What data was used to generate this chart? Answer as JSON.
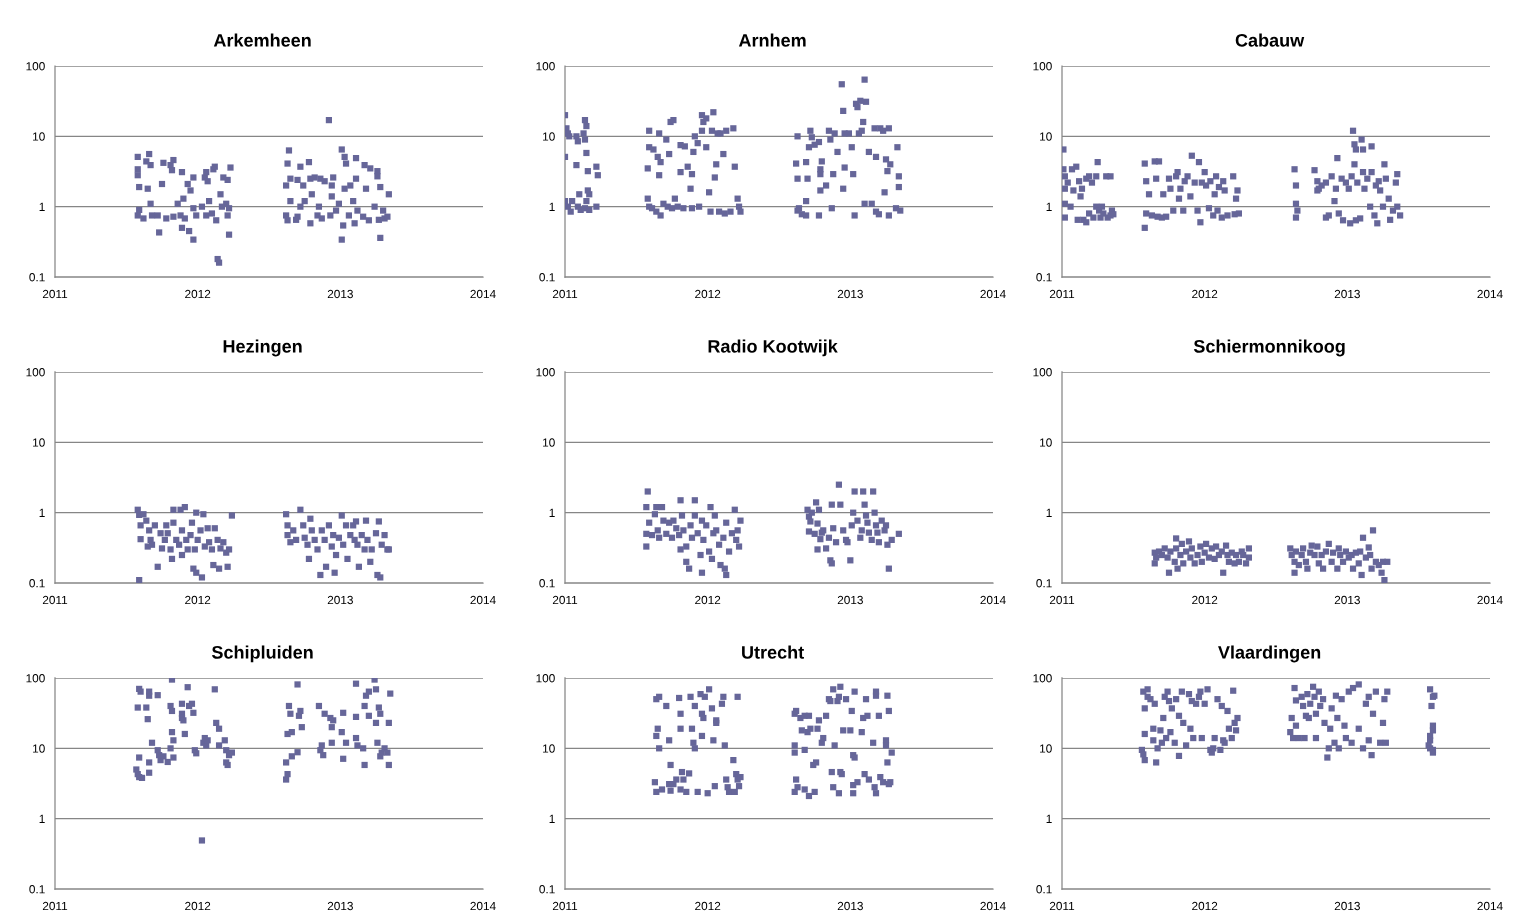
{
  "chart_data": [
    {
      "type": "scatter",
      "title": "Arkemheen",
      "color": "#666699",
      "marker": "square",
      "log": true,
      "grid": "y",
      "xlim": [
        2011,
        2014
      ],
      "xticks": [
        2011,
        2012,
        2013,
        2014
      ],
      "ylim": [
        0.1,
        100
      ],
      "yticks": [
        0.1,
        1,
        10,
        100
      ],
      "x": [
        2011.58,
        2011.58,
        2011.58,
        2011.59,
        2011.58,
        2011.59,
        2011.62,
        2011.64,
        2011.66,
        2011.67,
        2011.65,
        2011.67,
        2011.68,
        2011.72,
        2011.73,
        2011.75,
        2011.76,
        2011.78,
        2011.81,
        2011.82,
        2011.83,
        2011.83,
        2011.86,
        2011.88,
        2011.89,
        2011.89,
        2011.9,
        2011.91,
        2011.93,
        2011.94,
        2011.95,
        2011.97,
        2011.97,
        2011.97,
        2011.99,
        2012.03,
        2012.05,
        2012.06,
        2012.06,
        2012.07,
        2012.08,
        2012.1,
        2012.11,
        2012.12,
        2012.13,
        2012.14,
        2012.15,
        2012.16,
        2012.17,
        2012.18,
        2012.2,
        2012.21,
        2012.21,
        2012.22,
        2012.22,
        2012.23,
        2012.62,
        2012.63,
        2012.64,
        2012.62,
        2012.63,
        2012.65,
        2012.65,
        2012.69,
        2012.7,
        2012.7,
        2012.72,
        2012.72,
        2012.74,
        2012.75,
        2012.78,
        2012.79,
        2012.79,
        2012.8,
        2012.82,
        2012.84,
        2012.85,
        2012.86,
        2012.87,
        2012.89,
        2012.92,
        2012.93,
        2012.94,
        2012.94,
        2012.95,
        2012.97,
        2012.99,
        2013.01,
        2013.01,
        2013.02,
        2013.03,
        2013.03,
        2013.04,
        2013.06,
        2013.07,
        2013.09,
        2013.1,
        2013.11,
        2013.11,
        2013.12,
        2013.16,
        2013.17,
        2013.18,
        2013.2,
        2013.21,
        2013.24,
        2013.26,
        2013.26,
        2013.27,
        2013.28,
        2013.28,
        2013.3,
        2013.31,
        2013.33,
        2013.34
      ],
      "values": [
        5.1,
        3.4,
        2.8,
        1.9,
        0.75,
        0.9,
        0.68,
        4.4,
        5.6,
        3.9,
        1.8,
        1.1,
        0.75,
        0.75,
        0.43,
        2.1,
        4.2,
        0.68,
        3.9,
        3.3,
        4.6,
        0.72,
        1.1,
        0.75,
        0.5,
        3.1,
        1.3,
        0.68,
        2.1,
        0.45,
        1.7,
        2.6,
        0.95,
        0.34,
        0.75,
        1,
        2.6,
        3.1,
        0.75,
        2.3,
        1.2,
        0.8,
        3.4,
        3.7,
        0.64,
        0.18,
        0.16,
        1.5,
        1,
        2.6,
        1.1,
        0.75,
        2.4,
        0.4,
        0.95,
        3.6,
        2,
        4.1,
        6.3,
        0.75,
        0.64,
        2.5,
        1.2,
        0.65,
        0.72,
        2.4,
        3.7,
        1,
        2,
        1.2,
        4.3,
        2.5,
        0.58,
        1.5,
        2.6,
        0.75,
        1,
        2.5,
        0.68,
        2.3,
        17,
        0.75,
        2,
        1.4,
        2.6,
        0.88,
        1.1,
        6.5,
        0.34,
        0.54,
        5.1,
        1.8,
        4.1,
        0.75,
        2,
        1.2,
        0.58,
        4.9,
        2.5,
        0.88,
        0.72,
        3.9,
        1.8,
        0.64,
        3.5,
        1,
        3.2,
        2.7,
        0.65,
        0.36,
        1.9,
        0.88,
        0.68,
        0.72,
        1.5
      ]
    },
    {
      "type": "scatter",
      "title": "Arnhem",
      "color": "#666699",
      "marker": "square",
      "log": true,
      "grid": "y",
      "xlim": [
        2011,
        2014
      ],
      "xticks": [
        2011,
        2012,
        2013,
        2014
      ],
      "ylim": [
        0.1,
        100
      ],
      "yticks": [
        0.1,
        1,
        10,
        100
      ],
      "x": [
        2011.0,
        2011.01,
        2011.02,
        2011.03,
        2011.0,
        2011.0,
        2011.02,
        2011.04,
        2011.05,
        2011.08,
        2011.09,
        2011.08,
        2011.1,
        2011.09,
        2011.11,
        2011.14,
        2011.15,
        2011.13,
        2011.14,
        2011.15,
        2011.16,
        2011.16,
        2011.17,
        2011.15,
        2011.14,
        2011.17,
        2011.22,
        2011.23,
        2011.22,
        2011.58,
        2011.59,
        2011.59,
        2011.58,
        2011.59,
        2011.61,
        2011.62,
        2011.64,
        2011.65,
        2011.66,
        2011.66,
        2011.67,
        2011.67,
        2011.69,
        2011.71,
        2011.72,
        2011.73,
        2011.74,
        2011.75,
        2011.76,
        2011.77,
        2011.79,
        2011.81,
        2011.81,
        2011.83,
        2011.84,
        2011.86,
        2011.88,
        2011.89,
        2011.89,
        2011.9,
        2011.91,
        2011.93,
        2011.94,
        2011.96,
        2011.96,
        2011.97,
        2011.99,
        2011.99,
        2012.01,
        2012.02,
        2012.03,
        2012.04,
        2012.05,
        2012.06,
        2012.07,
        2012.08,
        2012.09,
        2012.11,
        2012.12,
        2012.13,
        2012.16,
        2012.18,
        2012.19,
        2012.21,
        2012.22,
        2012.23,
        2012.63,
        2012.63,
        2012.62,
        2012.63,
        2012.64,
        2012.66,
        2012.69,
        2012.69,
        2012.7,
        2012.69,
        2012.71,
        2012.72,
        2012.73,
        2012.75,
        2012.78,
        2012.78,
        2012.79,
        2012.79,
        2012.79,
        2012.8,
        2012.83,
        2012.85,
        2012.86,
        2012.87,
        2012.88,
        2012.89,
        2012.91,
        2012.94,
        2012.95,
        2012.95,
        2012.96,
        2012.96,
        2012.99,
        2013.01,
        2013.02,
        2013.03,
        2013.04,
        2013.05,
        2013.06,
        2013.07,
        2013.08,
        2013.09,
        2013.1,
        2013.1,
        2013.11,
        2013.13,
        2013.15,
        2013.17,
        2013.18,
        2013.18,
        2013.2,
        2013.21,
        2013.23,
        2013.24,
        2013.25,
        2013.26,
        2013.27,
        2013.27,
        2013.28,
        2013.32,
        2013.33,
        2013.34,
        2013.34,
        2013.35
      ],
      "values": [
        20,
        13,
        11,
        10,
        5.1,
        1.2,
        1,
        0.85,
        1.2,
        10,
        8.5,
        3.9,
        1.5,
        1,
        0.9,
        17,
        14,
        11,
        9,
        5.8,
        3.2,
        1.7,
        1.5,
        1.2,
        0.95,
        0.9,
        3.7,
        2.8,
        1,
        3.5,
        7,
        12,
        1.3,
        1,
        0.95,
        6.5,
        0.85,
        5.1,
        11,
        2.8,
        0.75,
        4.3,
        1.1,
        9,
        1,
        5.6,
        16,
        0.95,
        17,
        1.3,
        1,
        7.5,
        3.1,
        0.95,
        7.2,
        3.7,
        1.8,
        2.9,
        0.95,
        6,
        10,
        8,
        1,
        20,
        12,
        16,
        7,
        18,
        1.6,
        0.85,
        12,
        22,
        2.6,
        4,
        11,
        0.85,
        11,
        5.6,
        0.8,
        12,
        0.85,
        13,
        3.7,
        1.3,
        1,
        0.85,
        0.88,
        2.5,
        4.1,
        10,
        0.95,
        0.78,
        0.75,
        1.2,
        2.5,
        4.3,
        7,
        12,
        9.7,
        7.6,
        0.75,
        8.3,
        3.4,
        2.9,
        1.7,
        4.4,
        2,
        12,
        9,
        0.95,
        2.9,
        11,
        6,
        55,
        23,
        1.8,
        11,
        3.6,
        11,
        7,
        2.9,
        0.75,
        29,
        26,
        11,
        32,
        12,
        16,
        1.1,
        64,
        31,
        6,
        1.1,
        13,
        0.85,
        5.1,
        0.78,
        13,
        12,
        1.6,
        4.7,
        3.2,
        13,
        0.75,
        4,
        0.95,
        7,
        2.7,
        1.9,
        0.88
      ]
    },
    {
      "type": "scatter",
      "title": "Cabauw",
      "color": "#666699",
      "marker": "square",
      "log": true,
      "grid": "y",
      "xlim": [
        2011,
        2014
      ],
      "xticks": [
        2011,
        2012,
        2013,
        2014
      ],
      "ylim": [
        0.1,
        100
      ],
      "yticks": [
        0.1,
        1,
        10,
        100
      ],
      "x": [
        2011.01,
        2011.01,
        2011.02,
        2011.02,
        2011.02,
        2011.02,
        2011.04,
        2011.06,
        2011.07,
        2011.08,
        2011.1,
        2011.11,
        2011.12,
        2011.13,
        2011.14,
        2011.15,
        2011.17,
        2011.17,
        2011.19,
        2011.19,
        2011.21,
        2011.22,
        2011.24,
        2011.24,
        2011.25,
        2011.26,
        2011.27,
        2011.28,
        2011.29,
        2011.31,
        2011.32,
        2011.34,
        2011.34,
        2011.35,
        2011.36,
        2011.58,
        2011.58,
        2011.59,
        2011.59,
        2011.61,
        2011.63,
        2011.65,
        2011.66,
        2011.67,
        2011.68,
        2011.7,
        2011.71,
        2011.73,
        2011.75,
        2011.76,
        2011.78,
        2011.8,
        2011.81,
        2011.82,
        2011.83,
        2011.85,
        2011.86,
        2011.88,
        2011.9,
        2011.91,
        2011.93,
        2011.95,
        2011.96,
        2011.97,
        2011.98,
        2012.0,
        2012.01,
        2012.03,
        2012.04,
        2012.06,
        2012.07,
        2012.08,
        2012.09,
        2012.1,
        2012.12,
        2012.13,
        2012.14,
        2012.16,
        2012.2,
        2012.21,
        2012.22,
        2012.23,
        2012.24,
        2012.63,
        2012.64,
        2012.64,
        2012.64,
        2012.65,
        2012.77,
        2012.79,
        2012.79,
        2012.8,
        2012.82,
        2012.85,
        2012.85,
        2012.87,
        2012.89,
        2012.91,
        2012.92,
        2012.93,
        2012.94,
        2012.96,
        2012.97,
        2012.99,
        2013.01,
        2013.02,
        2013.03,
        2013.04,
        2013.05,
        2013.05,
        2013.06,
        2013.06,
        2013.07,
        2013.09,
        2013.1,
        2013.11,
        2013.11,
        2013.12,
        2013.14,
        2013.16,
        2013.17,
        2013.17,
        2013.19,
        2013.2,
        2013.21,
        2013.22,
        2013.23,
        2013.25,
        2013.26,
        2013.27,
        2013.29,
        2013.3,
        2013.32,
        2013.34,
        2013.35,
        2013.35,
        2013.37
      ],
      "values": [
        6.5,
        3.4,
        2.7,
        1.8,
        1.1,
        0.7,
        2.2,
        1,
        3.4,
        1.7,
        3.7,
        0.65,
        2.3,
        1.4,
        1.8,
        0.65,
        0.6,
        2.5,
        2.7,
        0.8,
        2.2,
        0.7,
        2.7,
        1,
        4.3,
        0.88,
        0.7,
        1,
        0.8,
        2.7,
        0.7,
        0.75,
        2.7,
        0.88,
        0.78,
        4.1,
        0.5,
        2.3,
        0.8,
        1.5,
        0.75,
        4.4,
        2.5,
        0.72,
        4.4,
        0.7,
        1.5,
        0.72,
        2.5,
        1.8,
        0.88,
        2.7,
        3.1,
        1.3,
        1.8,
        0.88,
        2.3,
        2.7,
        1.4,
        5.3,
        2.2,
        0.88,
        4.3,
        0.6,
        2.2,
        3.1,
        2,
        0.95,
        2.3,
        0.75,
        1.5,
        2.7,
        0.88,
        1.9,
        0.7,
        2.3,
        1.7,
        0.75,
        2.7,
        0.78,
        1.3,
        1.7,
        0.8,
        3.4,
        2,
        1.1,
        0.7,
        0.88,
        3.3,
        2.3,
        1.7,
        1.8,
        2,
        0.7,
        2.2,
        0.75,
        2.7,
        1.2,
        1.8,
        4.9,
        0.8,
        2.5,
        0.64,
        2.2,
        1.8,
        0.58,
        2.7,
        12,
        7.7,
        4,
        0.64,
        6.5,
        2.2,
        0.68,
        9,
        3.1,
        6.5,
        1.8,
        2.5,
        1,
        7.2,
        3.1,
        0.75,
        2,
        0.58,
        2.3,
        1.7,
        1,
        4,
        2.5,
        1.3,
        0.65,
        0.88,
        2.2,
        2.9,
        1,
        0.75
      ]
    },
    {
      "type": "scatter",
      "title": "Hezingen",
      "color": "#666699",
      "marker": "square",
      "log": true,
      "grid": "y",
      "xlim": [
        2011,
        2014
      ],
      "xticks": [
        2011,
        2012,
        2013,
        2014
      ],
      "ylim": [
        0.1,
        100
      ],
      "yticks": [
        0.1,
        1,
        10,
        100
      ],
      "x": [
        2011.58,
        2011.59,
        2011.59,
        2011.6,
        2011.6,
        2011.62,
        2011.64,
        2011.65,
        2011.66,
        2011.67,
        2011.68,
        2011.7,
        2011.72,
        2011.74,
        2011.75,
        2011.77,
        2011.78,
        2011.79,
        2011.81,
        2011.82,
        2011.83,
        2011.83,
        2011.85,
        2011.87,
        2011.88,
        2011.89,
        2011.89,
        2011.91,
        2011.92,
        2011.93,
        2011.95,
        2011.96,
        2011.97,
        2011.98,
        2011.99,
        2011.99,
        2012.0,
        2012.02,
        2012.03,
        2012.04,
        2012.05,
        2012.07,
        2012.08,
        2012.1,
        2012.11,
        2012.12,
        2012.14,
        2012.15,
        2012.16,
        2012.18,
        2012.2,
        2012.21,
        2012.22,
        2012.24,
        2012.62,
        2012.63,
        2012.63,
        2012.65,
        2012.67,
        2012.69,
        2012.72,
        2012.74,
        2012.75,
        2012.77,
        2012.78,
        2012.79,
        2012.8,
        2012.82,
        2012.84,
        2012.86,
        2012.87,
        2012.89,
        2012.9,
        2012.92,
        2012.94,
        2012.95,
        2012.96,
        2012.97,
        2012.99,
        2013.01,
        2013.02,
        2013.04,
        2013.05,
        2013.07,
        2013.09,
        2013.1,
        2013.11,
        2013.12,
        2013.13,
        2013.15,
        2013.17,
        2013.18,
        2013.19,
        2013.21,
        2013.22,
        2013.25,
        2013.26,
        2013.27,
        2013.28,
        2013.29,
        2013.31,
        2013.33,
        2013.34
      ],
      "values": [
        1.1,
        0.93,
        0.11,
        0.66,
        0.42,
        0.95,
        0.77,
        0.33,
        0.56,
        0.41,
        0.35,
        0.66,
        0.17,
        0.51,
        0.31,
        0.41,
        0.66,
        0.51,
        0.3,
        0.22,
        1.1,
        0.72,
        0.41,
        0.35,
        1.1,
        0.56,
        0.25,
        1.2,
        0.41,
        0.3,
        0.48,
        0.72,
        0.16,
        0.3,
        0.14,
        1,
        0.41,
        0.56,
        0.12,
        0.95,
        0.33,
        0.6,
        0.38,
        0.3,
        0.18,
        0.6,
        0.41,
        0.16,
        0.31,
        0.38,
        0.27,
        0.17,
        0.3,
        0.91,
        0.95,
        0.66,
        0.48,
        0.38,
        0.56,
        0.41,
        1.1,
        0.66,
        0.44,
        0.35,
        0.22,
        0.82,
        0.56,
        0.41,
        0.3,
        0.13,
        0.56,
        0.41,
        0.17,
        0.66,
        0.33,
        0.48,
        0.14,
        0.25,
        0.44,
        0.91,
        0.35,
        0.66,
        0.22,
        0.48,
        0.66,
        0.41,
        0.75,
        0.35,
        0.17,
        0.48,
        0.3,
        0.77,
        0.41,
        0.2,
        0.3,
        0.51,
        0.13,
        0.75,
        0.12,
        0.35,
        0.48,
        0.3,
        0.3
      ]
    },
    {
      "type": "scatter",
      "title": "Radio Kootwijk",
      "color": "#666699",
      "marker": "square",
      "log": true,
      "grid": "y",
      "xlim": [
        2011,
        2014
      ],
      "xticks": [
        2011,
        2012,
        2013,
        2014
      ],
      "ylim": [
        0.1,
        100
      ],
      "yticks": [
        0.1,
        1,
        10,
        100
      ],
      "x": [
        2011.58,
        2011.57,
        2011.57,
        2011.57,
        2011.59,
        2011.61,
        2011.63,
        2011.64,
        2011.65,
        2011.66,
        2011.68,
        2011.69,
        2011.71,
        2011.73,
        2011.75,
        2011.76,
        2011.78,
        2011.8,
        2011.81,
        2011.81,
        2011.82,
        2011.83,
        2011.85,
        2011.85,
        2011.87,
        2011.88,
        2011.89,
        2011.91,
        2011.91,
        2011.93,
        2011.95,
        2011.96,
        2011.96,
        2011.97,
        2011.99,
        2012.01,
        2012.02,
        2012.03,
        2012.04,
        2012.05,
        2012.06,
        2012.08,
        2012.09,
        2012.11,
        2012.12,
        2012.13,
        2012.13,
        2012.15,
        2012.17,
        2012.19,
        2012.2,
        2012.21,
        2012.22,
        2012.23,
        2012.7,
        2012.71,
        2012.71,
        2012.72,
        2012.73,
        2012.75,
        2012.76,
        2012.77,
        2012.77,
        2012.78,
        2012.79,
        2012.8,
        2012.81,
        2012.83,
        2012.85,
        2012.86,
        2012.87,
        2012.87,
        2012.88,
        2012.9,
        2012.92,
        2012.93,
        2012.95,
        2012.97,
        2012.98,
        2013.0,
        2013.01,
        2013.02,
        2013.03,
        2013.05,
        2013.07,
        2013.08,
        2013.09,
        2013.1,
        2013.11,
        2013.12,
        2013.13,
        2013.15,
        2013.16,
        2013.17,
        2013.18,
        2013.19,
        2013.2,
        2013.22,
        2013.24,
        2013.25,
        2013.26,
        2013.27,
        2013.29,
        2013.34
      ],
      "values": [
        2,
        1.2,
        0.5,
        0.33,
        0.72,
        0.48,
        0.95,
        1.2,
        0.56,
        0.44,
        1.2,
        0.77,
        0.5,
        0.72,
        0.44,
        0.77,
        0.6,
        0.48,
        0.3,
        1.5,
        0.91,
        0.56,
        0.33,
        0.2,
        0.16,
        0.66,
        0.44,
        1.5,
        0.91,
        0.51,
        0.25,
        0.77,
        0.14,
        0.41,
        0.66,
        0.28,
        1.2,
        0.22,
        0.51,
        0.91,
        0.56,
        0.35,
        0.18,
        0.44,
        0.16,
        0.13,
        0.72,
        0.28,
        0.51,
        1.1,
        0.41,
        0.56,
        0.33,
        0.77,
        1.1,
        0.88,
        0.54,
        0.75,
        1,
        0.5,
        1.4,
        0.7,
        0.3,
        1.1,
        0.42,
        0.52,
        0.56,
        0.31,
        0.44,
        0.21,
        0.19,
        1.3,
        0.6,
        0.38,
        2.5,
        1.3,
        0.56,
        0.41,
        0.38,
        0.21,
        0.66,
        1,
        2,
        0.77,
        0.44,
        0.56,
        2,
        1.3,
        0.91,
        0.72,
        0.52,
        0.41,
        2,
        1,
        0.66,
        0.52,
        0.38,
        0.77,
        0.56,
        0.66,
        0.35,
        0.16,
        0.41,
        0.5
      ]
    },
    {
      "type": "scatter",
      "title": "Schiermonnikoog",
      "color": "#666699",
      "marker": "square",
      "log": true,
      "grid": "y",
      "xlim": [
        2011,
        2014
      ],
      "xticks": [
        2011,
        2012,
        2013,
        2014
      ],
      "ylim": [
        0.1,
        100
      ],
      "yticks": [
        0.1,
        1,
        10,
        100
      ],
      "x": [
        2011.65,
        2011.65,
        2011.66,
        2011.68,
        2011.7,
        2011.72,
        2011.74,
        2011.75,
        2011.76,
        2011.79,
        2011.8,
        2011.8,
        2011.81,
        2011.83,
        2011.84,
        2011.85,
        2011.87,
        2011.89,
        2011.9,
        2011.91,
        2011.93,
        2011.95,
        2011.97,
        2011.98,
        2012.0,
        2012.01,
        2012.03,
        2012.05,
        2012.07,
        2012.08,
        2012.1,
        2012.12,
        2012.13,
        2012.15,
        2012.16,
        2012.17,
        2012.19,
        2012.21,
        2012.22,
        2012.24,
        2012.26,
        2012.27,
        2012.29,
        2012.31,
        2012.31,
        2012.6,
        2012.61,
        2012.63,
        2012.63,
        2012.64,
        2012.66,
        2012.68,
        2012.69,
        2012.71,
        2012.72,
        2012.74,
        2012.75,
        2012.77,
        2012.79,
        2012.8,
        2012.82,
        2012.83,
        2012.85,
        2012.87,
        2012.89,
        2012.9,
        2012.93,
        2012.94,
        2012.95,
        2012.97,
        2012.99,
        2013.01,
        2013.03,
        2013.04,
        2013.06,
        2013.08,
        2013.09,
        2013.1,
        2013.11,
        2013.13,
        2013.15,
        2013.16,
        2013.17,
        2013.18,
        2013.2,
        2013.22,
        2013.24,
        2013.25,
        2013.26,
        2013.28
      ],
      "values": [
        0.19,
        0.27,
        0.23,
        0.28,
        0.25,
        0.31,
        0.23,
        0.14,
        0.28,
        0.2,
        0.43,
        0.31,
        0.16,
        0.25,
        0.36,
        0.19,
        0.28,
        0.39,
        0.23,
        0.31,
        0.19,
        0.25,
        0.33,
        0.2,
        0.27,
        0.36,
        0.23,
        0.31,
        0.22,
        0.33,
        0.25,
        0.28,
        0.14,
        0.34,
        0.25,
        0.2,
        0.27,
        0.19,
        0.25,
        0.2,
        0.28,
        0.25,
        0.19,
        0.23,
        0.31,
        0.31,
        0.25,
        0.2,
        0.14,
        0.28,
        0.18,
        0.25,
        0.31,
        0.2,
        0.16,
        0.27,
        0.34,
        0.25,
        0.33,
        0.19,
        0.25,
        0.16,
        0.28,
        0.36,
        0.2,
        0.27,
        0.16,
        0.31,
        0.25,
        0.2,
        0.28,
        0.23,
        0.25,
        0.16,
        0.27,
        0.19,
        0.28,
        0.13,
        0.44,
        0.23,
        0.32,
        0.25,
        0.16,
        0.56,
        0.2,
        0.18,
        0.14,
        0.2,
        0.11,
        0.2
      ]
    },
    {
      "type": "scatter",
      "title": "Schipluiden",
      "color": "#666699",
      "marker": "square",
      "log": true,
      "grid": "y",
      "xlim": [
        2011,
        2014
      ],
      "xticks": [
        2011,
        2012,
        2013,
        2014
      ],
      "ylim": [
        0.1,
        100
      ],
      "yticks": [
        0.1,
        1,
        10,
        100
      ],
      "x": [
        2011.59,
        2011.6,
        2011.58,
        2011.59,
        2011.57,
        2011.58,
        2011.59,
        2011.61,
        2011.64,
        2011.65,
        2011.66,
        2011.66,
        2011.66,
        2011.66,
        2011.68,
        2011.72,
        2011.72,
        2011.73,
        2011.74,
        2011.76,
        2011.79,
        2011.81,
        2011.82,
        2011.82,
        2011.81,
        2011.82,
        2011.83,
        2011.83,
        2011.89,
        2011.89,
        2011.89,
        2011.9,
        2011.91,
        2011.93,
        2011.94,
        2011.96,
        2011.97,
        2011.98,
        2011.99,
        2012.03,
        2012.04,
        2012.05,
        2012.06,
        2012.07,
        2012.12,
        2012.13,
        2012.15,
        2012.15,
        2012.19,
        2012.2,
        2012.2,
        2012.21,
        2012.22,
        2012.24,
        2012.62,
        2012.62,
        2012.63,
        2012.63,
        2012.64,
        2012.65,
        2012.66,
        2012.66,
        2012.7,
        2012.7,
        2012.71,
        2012.72,
        2012.73,
        2012.85,
        2012.86,
        2012.87,
        2012.88,
        2012.89,
        2012.93,
        2012.94,
        2012.95,
        2012.94,
        2013.01,
        2013.02,
        2013.02,
        2013.04,
        2013.11,
        2013.11,
        2013.11,
        2013.12,
        2013.16,
        2013.17,
        2013.17,
        2013.18,
        2013.2,
        2013.2,
        2013.24,
        2013.25,
        2013.25,
        2013.26,
        2013.27,
        2013.28,
        2013.28,
        2013.29,
        2013.31,
        2013.33,
        2013.34,
        2013.34,
        2013.35
      ],
      "values": [
        70,
        64,
        38,
        7.4,
        5,
        4.3,
        3.9,
        3.8,
        38,
        26,
        64,
        56,
        4.5,
        6.3,
        12,
        57,
        9.4,
        8,
        6.8,
        7.7,
        6.4,
        10,
        17,
        95,
        40,
        34,
        7.4,
        13,
        43,
        31,
        27,
        25,
        16,
        74,
        40,
        43,
        32,
        9.4,
        8.5,
        0.49,
        12,
        14,
        11,
        13,
        69,
        23,
        19,
        11,
        13,
        6.3,
        9.4,
        5.8,
        8,
        8.7,
        6.3,
        3.6,
        4.3,
        16,
        40,
        31,
        7.7,
        17,
        81,
        8.8,
        29,
        34,
        20,
        40,
        9.4,
        11,
        8,
        31,
        27,
        20,
        25,
        12,
        17,
        32,
        7.1,
        12,
        83,
        14,
        28,
        11,
        10,
        40,
        5.8,
        56,
        64,
        29,
        95,
        69,
        23,
        12,
        38,
        31,
        7.7,
        8.7,
        10,
        8.7,
        23,
        5.8,
        60
      ]
    },
    {
      "type": "scatter",
      "title": "Utrecht",
      "color": "#666699",
      "marker": "square",
      "log": true,
      "grid": "y",
      "xlim": [
        2011,
        2014
      ],
      "xticks": [
        2011,
        2012,
        2013,
        2014
      ],
      "ylim": [
        0.1,
        100
      ],
      "yticks": [
        0.1,
        1,
        10,
        100
      ],
      "x": [
        2011.63,
        2011.64,
        2011.64,
        2011.66,
        2011.64,
        2011.65,
        2011.66,
        2011.68,
        2011.71,
        2011.73,
        2011.74,
        2011.73,
        2011.74,
        2011.76,
        2011.78,
        2011.8,
        2011.81,
        2011.81,
        2011.81,
        2011.82,
        2011.83,
        2011.85,
        2011.87,
        2011.88,
        2011.89,
        2011.9,
        2011.91,
        2011.91,
        2011.93,
        2011.95,
        2011.96,
        2011.97,
        2011.96,
        2011.98,
        2012.0,
        2012.01,
        2012.03,
        2012.04,
        2012.05,
        2012.06,
        2012.06,
        2012.1,
        2012.11,
        2012.12,
        2012.13,
        2012.14,
        2012.15,
        2012.18,
        2012.19,
        2012.2,
        2012.21,
        2012.21,
        2012.22,
        2012.23,
        2012.61,
        2012.62,
        2012.61,
        2012.61,
        2012.62,
        2012.61,
        2012.63,
        2012.65,
        2012.66,
        2012.68,
        2012.68,
        2012.68,
        2012.7,
        2012.71,
        2012.71,
        2012.72,
        2012.74,
        2012.75,
        2012.76,
        2012.77,
        2012.78,
        2012.8,
        2012.81,
        2012.83,
        2012.85,
        2012.86,
        2012.87,
        2012.88,
        2012.88,
        2012.89,
        2012.91,
        2012.92,
        2012.92,
        2012.93,
        2012.93,
        2012.94,
        2012.95,
        2012.97,
        2013.0,
        2013.01,
        2013.02,
        2013.02,
        2013.02,
        2013.03,
        2013.03,
        2013.05,
        2013.08,
        2013.09,
        2013.1,
        2013.11,
        2013.12,
        2013.13,
        2013.16,
        2013.17,
        2013.18,
        2013.18,
        2013.18,
        2013.2,
        2013.21,
        2013.23,
        2013.25,
        2013.25,
        2013.26,
        2013.26,
        2013.27,
        2013.27,
        2013.28,
        2013.29
      ],
      "values": [
        3.3,
        2.4,
        50,
        54,
        15,
        19,
        10,
        2.6,
        40,
        13,
        5.8,
        3.1,
        2.5,
        3.1,
        3.6,
        52,
        19,
        31,
        2.6,
        4.6,
        3.6,
        2.4,
        4.4,
        54,
        19,
        12,
        40,
        10,
        2.4,
        59,
        31,
        27,
        15,
        54,
        2.3,
        69,
        37,
        13,
        2.9,
        25,
        23,
        43,
        54,
        11,
        3.6,
        2.8,
        2.4,
        6.8,
        2.4,
        4.3,
        3.6,
        54,
        2.9,
        3.9,
        31,
        34,
        11,
        8.7,
        3.6,
        2.4,
        2.8,
        27,
        18,
        29,
        9.5,
        2.6,
        17,
        29,
        2.1,
        19,
        5.8,
        2.4,
        6.3,
        19,
        25,
        12,
        14,
        29,
        50,
        47,
        4.6,
        2.8,
        69,
        11,
        47,
        2.3,
        54,
        75,
        4.6,
        4.3,
        18,
        50,
        18,
        34,
        8,
        2.3,
        3,
        64,
        7.4,
        3.3,
        17,
        27,
        4.3,
        50,
        29,
        3.6,
        12,
        2.8,
        64,
        56,
        2.3,
        29,
        3.9,
        3.3,
        13,
        11,
        6.3,
        56,
        34,
        3.1,
        3.3,
        8.7
      ]
    },
    {
      "type": "scatter",
      "title": "Vlaardingen",
      "color": "#666699",
      "marker": "square",
      "log": true,
      "grid": "y",
      "xlim": [
        2011,
        2014
      ],
      "xticks": [
        2011,
        2012,
        2013,
        2014
      ],
      "ylim": [
        0.1,
        100
      ],
      "yticks": [
        0.1,
        1,
        10,
        100
      ],
      "x": [
        2011.56,
        2011.57,
        2011.58,
        2011.58,
        2011.57,
        2011.58,
        2011.6,
        2011.6,
        2011.62,
        2011.64,
        2011.64,
        2011.65,
        2011.66,
        2011.67,
        2011.69,
        2011.7,
        2011.71,
        2011.72,
        2011.73,
        2011.74,
        2011.75,
        2011.76,
        2011.77,
        2011.79,
        2011.8,
        2011.82,
        2011.82,
        2011.84,
        2011.85,
        2011.87,
        2011.89,
        2011.9,
        2011.91,
        2011.92,
        2011.94,
        2011.96,
        2011.97,
        2011.98,
        2012.0,
        2012.02,
        2012.04,
        2012.05,
        2012.06,
        2012.07,
        2012.09,
        2012.11,
        2012.12,
        2012.13,
        2012.14,
        2012.16,
        2012.17,
        2012.19,
        2012.2,
        2012.21,
        2012.22,
        2012.23,
        2012.6,
        2012.61,
        2012.62,
        2012.63,
        2012.64,
        2012.64,
        2012.66,
        2012.68,
        2012.69,
        2012.7,
        2012.71,
        2012.72,
        2012.73,
        2012.74,
        2012.76,
        2012.77,
        2012.78,
        2012.78,
        2012.8,
        2012.81,
        2012.83,
        2012.84,
        2012.86,
        2012.87,
        2012.88,
        2012.89,
        2012.91,
        2012.92,
        2012.93,
        2012.94,
        2012.96,
        2012.98,
        2012.99,
        2013.01,
        2013.03,
        2013.04,
        2013.08,
        2013.08,
        2013.11,
        2013.13,
        2013.15,
        2013.15,
        2013.17,
        2013.18,
        2013.2,
        2013.23,
        2013.25,
        2013.26,
        2013.27,
        2013.28,
        2013.58,
        2013.6,
        2013.59,
        2013.6,
        2013.6,
        2013.58,
        2013.58,
        2013.57,
        2013.58,
        2013.6,
        2013.6,
        2013.61
      ],
      "values": [
        9.5,
        8.2,
        6.8,
        37,
        64,
        16,
        54,
        69,
        50,
        13,
        19,
        43,
        6.3,
        10,
        18,
        12,
        27,
        54,
        14,
        64,
        47,
        17,
        37,
        12,
        50,
        7.8,
        29,
        64,
        23,
        11,
        59,
        19,
        47,
        14,
        43,
        54,
        64,
        14,
        43,
        69,
        9.5,
        8.7,
        10,
        14,
        50,
        9.5,
        40,
        13,
        12,
        34,
        19,
        14,
        66,
        23,
        18,
        27,
        17,
        27,
        14,
        72,
        48,
        21,
        14,
        54,
        40,
        14,
        29,
        59,
        27,
        43,
        75,
        54,
        14,
        31,
        64,
        40,
        50,
        23,
        7.4,
        10,
        19,
        37,
        12,
        56,
        27,
        10,
        50,
        21,
        14,
        64,
        12,
        72,
        81,
        19,
        10,
        43,
        54,
        13,
        8,
        31,
        64,
        12,
        23,
        50,
        12,
        64,
        69,
        54,
        40,
        21,
        18,
        15,
        13,
        11,
        10,
        9.5,
        8.7,
        56
      ]
    }
  ]
}
